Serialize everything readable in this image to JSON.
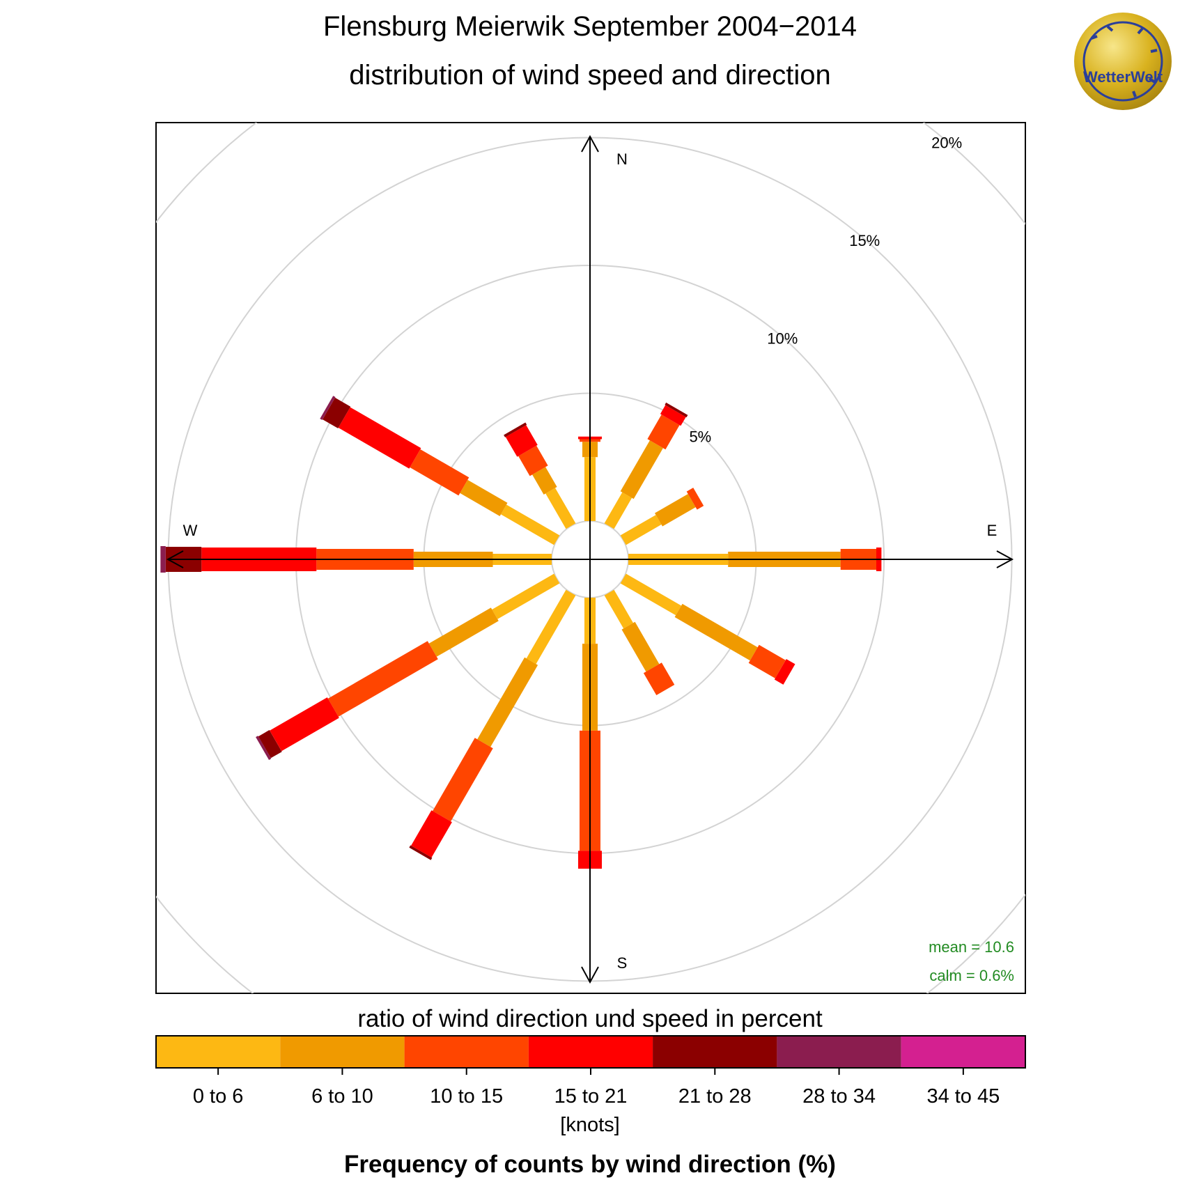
{
  "chart_data": {
    "type": "windrose",
    "title": "Flensburg Meierwik September 2004−2014",
    "subtitle": "distribution of wind speed and direction",
    "directions_deg": [
      0,
      30,
      60,
      90,
      120,
      150,
      180,
      210,
      240,
      270,
      300,
      330
    ],
    "compass_labels": {
      "n": "N",
      "e": "E",
      "s": "S",
      "w": "W"
    },
    "rings_percent": [
      5,
      10,
      15,
      20
    ],
    "ring_labels": [
      "5%",
      "10%",
      "15%",
      "20%"
    ],
    "inner_offset_percent": 1.5,
    "speed_bins": [
      {
        "label": "0 to 6",
        "color": "#FDB813"
      },
      {
        "label": "6 to 10",
        "color": "#F09A00"
      },
      {
        "label": "10 to 15",
        "color": "#FF4500"
      },
      {
        "label": "15 to 21",
        "color": "#FF0000"
      },
      {
        "label": "21 to 28",
        "color": "#8B0000"
      },
      {
        "label": "28 to 34",
        "color": "#8B1D4F"
      },
      {
        "label": "34 to 45",
        "color": "#D42090"
      }
    ],
    "series": [
      {
        "direction": 0,
        "values": [
          2.5,
          0.6,
          0.1,
          0.1,
          0.0,
          0.0,
          0.0
        ]
      },
      {
        "direction": 30,
        "values": [
          1.4,
          2.3,
          1.1,
          0.4,
          0.1,
          0.0,
          0.0
        ]
      },
      {
        "direction": 60,
        "values": [
          1.6,
          1.5,
          0.3,
          0.0,
          0.0,
          0.0,
          0.0
        ]
      },
      {
        "direction": 90,
        "values": [
          3.9,
          4.4,
          1.4,
          0.2,
          0.0,
          0.0,
          0.0
        ]
      },
      {
        "direction": 120,
        "values": [
          2.5,
          3.4,
          1.2,
          0.4,
          0.0,
          0.0,
          0.0
        ]
      },
      {
        "direction": 150,
        "values": [
          1.5,
          1.9,
          1.0,
          0.0,
          0.0,
          0.0,
          0.0
        ]
      },
      {
        "direction": 180,
        "values": [
          1.8,
          3.4,
          4.7,
          0.7,
          0.0,
          0.0,
          0.0
        ]
      },
      {
        "direction": 210,
        "values": [
          3.1,
          3.7,
          3.3,
          1.6,
          0.1,
          0.0,
          0.0
        ]
      },
      {
        "direction": 240,
        "values": [
          2.8,
          2.8,
          4.5,
          2.6,
          0.5,
          0.1,
          0.0
        ]
      },
      {
        "direction": 270,
        "values": [
          2.3,
          3.1,
          3.8,
          4.5,
          1.4,
          0.2,
          0.0
        ]
      },
      {
        "direction": 300,
        "values": [
          2.4,
          1.8,
          2.2,
          3.2,
          0.7,
          0.1,
          0.0
        ]
      },
      {
        "direction": 330,
        "values": [
          1.6,
          0.9,
          0.9,
          0.9,
          0.1,
          0.0,
          0.0
        ]
      }
    ],
    "stats": {
      "mean": "mean = 10.6",
      "calm": "calm = 0.6%"
    },
    "legend_title": "ratio of wind direction und speed in percent",
    "legend_unit": "[knots]",
    "xlabel": "Frequency of counts by wind direction (%)",
    "grid": true,
    "colors": {
      "grid": "#d3d3d3",
      "stats_text": "#228B22",
      "axis": "#000000"
    }
  },
  "logo": {
    "text": "WetterWelt",
    "icon": "wetterwelt-logo"
  }
}
